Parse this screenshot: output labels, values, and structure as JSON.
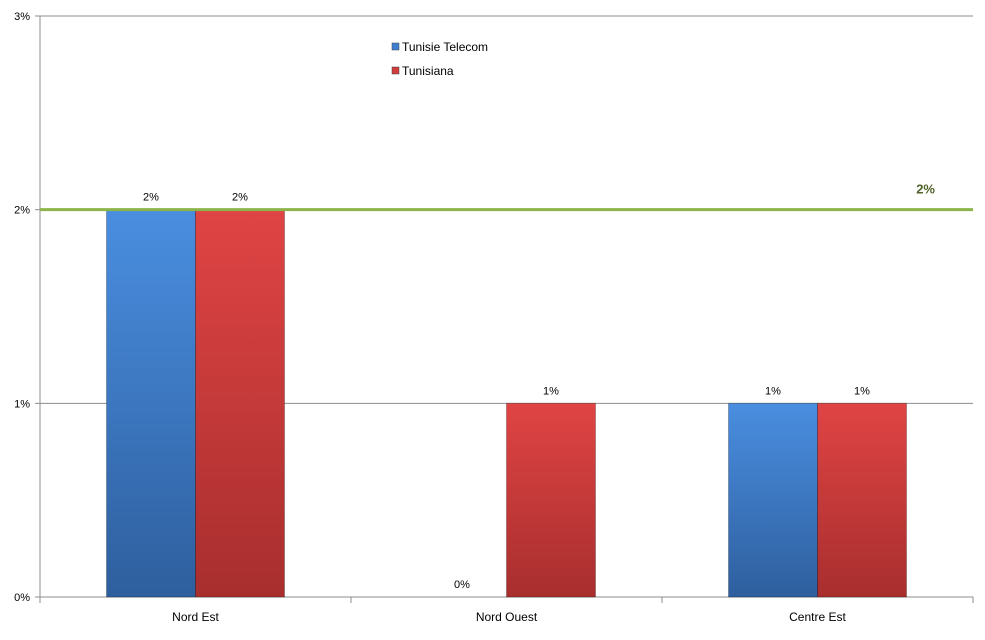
{
  "chart_data": {
    "type": "bar",
    "categories": [
      "Nord Est",
      "Nord Ouest",
      "Centre Est"
    ],
    "series": [
      {
        "name": "Tunisie Telecom",
        "values": [
          2,
          0,
          1
        ],
        "labels": [
          "2%",
          "0%",
          "1%"
        ],
        "color": "#3f7fd0"
      },
      {
        "name": "Tunisiana",
        "values": [
          2,
          1,
          1
        ],
        "labels": [
          "2%",
          "1%",
          "1%"
        ],
        "color": "#d13c3c"
      }
    ],
    "y_ticks": [
      {
        "value": 0,
        "label": "0%"
      },
      {
        "value": 1,
        "label": "1%"
      },
      {
        "value": 2,
        "label": "2%"
      },
      {
        "value": 3,
        "label": "3%"
      }
    ],
    "ylim": [
      0,
      3
    ],
    "reference_line": {
      "value": 2,
      "label": "2%",
      "color": "#8cb44a"
    },
    "legend_position": "top-center",
    "grid": true,
    "title": "",
    "xlabel": "",
    "ylabel": ""
  }
}
